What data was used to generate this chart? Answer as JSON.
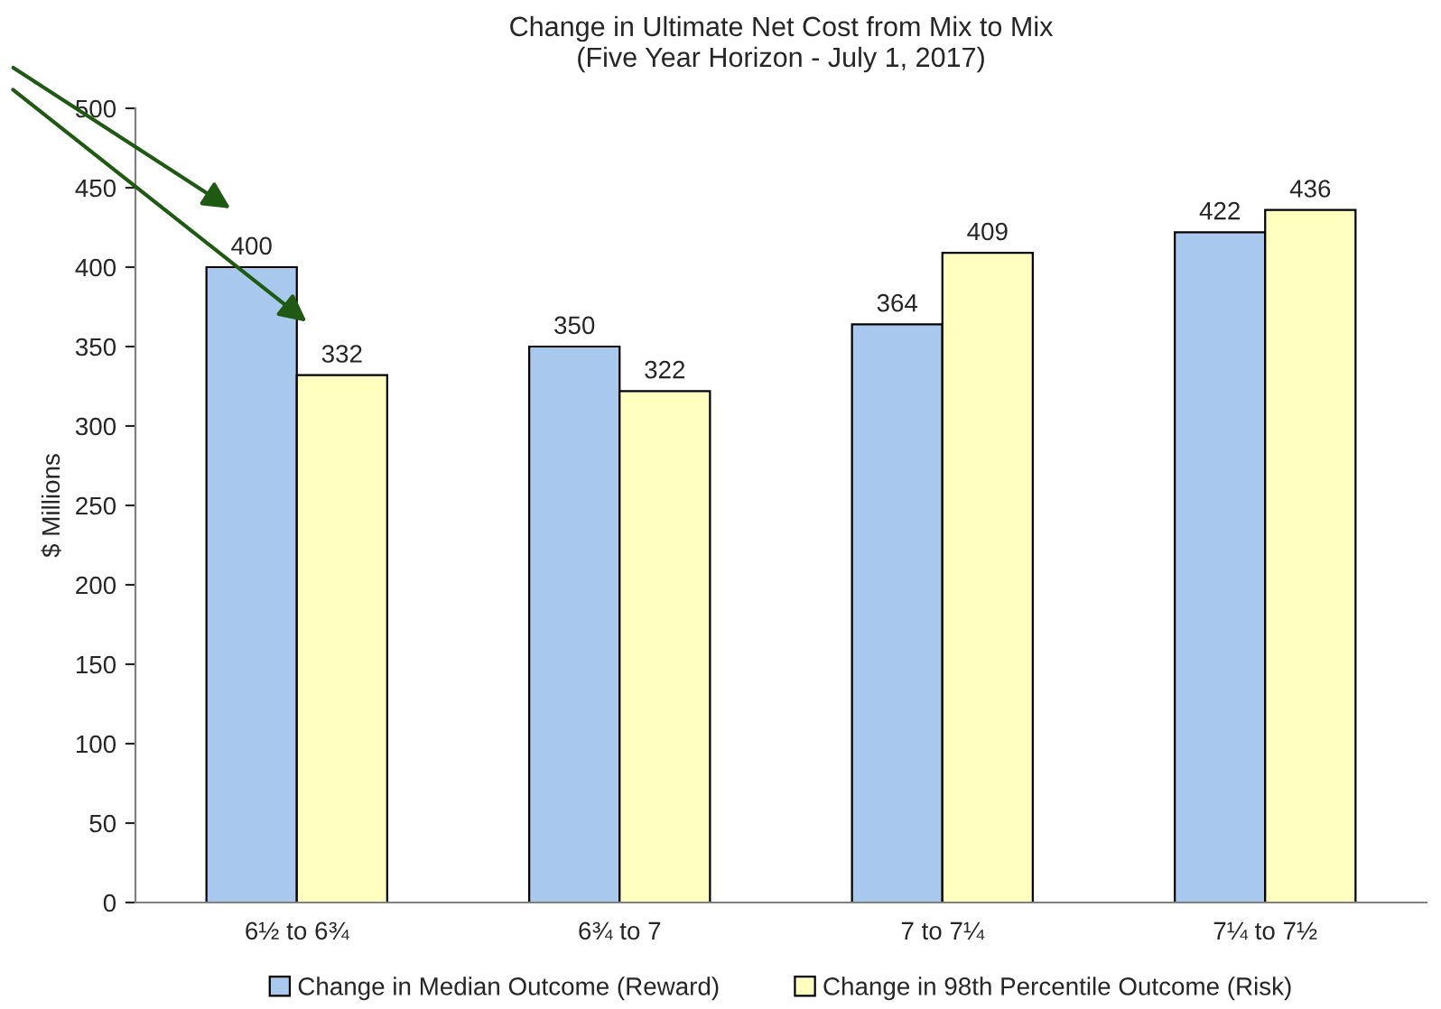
{
  "chart_data": {
    "type": "bar",
    "title": "Change in Ultimate Net Cost from Mix to Mix",
    "subtitle": "(Five Year Horizon - July 1, 2017)",
    "ylabel": "$ Millions",
    "categories": [
      "6½ to 6¾",
      "6¾ to 7",
      "7 to 7¼",
      "7¼ to 7½"
    ],
    "series": [
      {
        "name": "Change in Median Outcome (Reward)",
        "color": "#a9c8ee",
        "values": [
          400,
          350,
          364,
          422
        ]
      },
      {
        "name": "Change in 98th Percentile Outcome (Risk)",
        "color": "#ffffc0",
        "values": [
          332,
          322,
          409,
          436
        ]
      }
    ],
    "ylim": [
      0,
      500
    ],
    "yticks": [
      0,
      50,
      100,
      150,
      200,
      250,
      300,
      350,
      400,
      450,
      500
    ],
    "data_labels": true,
    "grid": false,
    "legend": "bottom"
  }
}
